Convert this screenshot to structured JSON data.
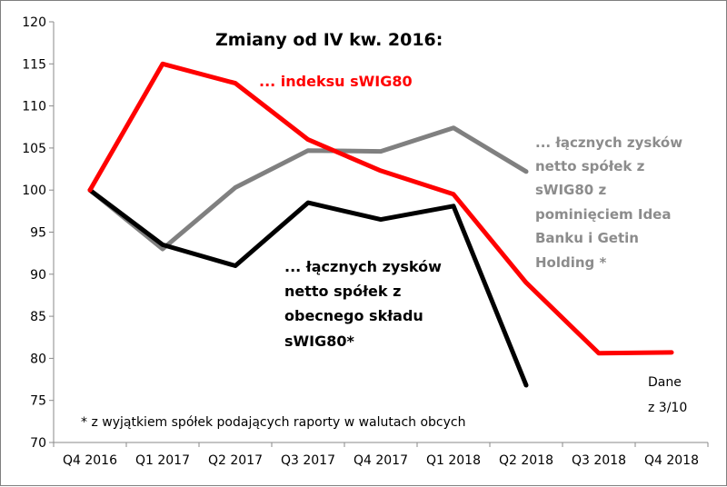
{
  "chart_data": {
    "type": "line",
    "title": "Zmiany od IV kw. 2016:",
    "categories": [
      "Q4 2016",
      "Q1 2017",
      "Q2 2017",
      "Q3 2017",
      "Q4 2017",
      "Q1 2018",
      "Q2 2018",
      "Q3 2018",
      "Q4 2018"
    ],
    "ylim": [
      70,
      120
    ],
    "yticks": [
      70,
      75,
      80,
      85,
      90,
      95,
      100,
      105,
      110,
      115,
      120
    ],
    "grid": false,
    "series": [
      {
        "name": "... indeksu sWIG80",
        "color": "#ff0000",
        "values": [
          100,
          115,
          112.7,
          106,
          102.3,
          99.5,
          89,
          80.6,
          80.7
        ]
      },
      {
        "name": "... łącznych zysków netto spółek z sWIG80 z pominięciem Idea Banku i Getin Holding *",
        "color": "#808080",
        "values": [
          100,
          93,
          100.3,
          104.7,
          104.6,
          107.4,
          102.2,
          null,
          null
        ]
      },
      {
        "name": "... łącznych zysków netto spółek z obecnego składu sWIG80*",
        "color": "#000000",
        "values": [
          100,
          93.5,
          91,
          98.5,
          96.5,
          98.1,
          76.8,
          null,
          null
        ]
      }
    ],
    "annotations": {
      "red_label": "... indeksu sWIG80",
      "gray_label_lines": [
        "... łącznych zysków",
        "netto spółek z",
        "sWIG80 z",
        "pominięciem Idea",
        "Banku i Getin",
        "Holding *"
      ],
      "black_label_lines": [
        "... łącznych zysków",
        "netto spółek z",
        "obecnego składu",
        "sWIG80*"
      ],
      "data_note_lines": [
        "Dane",
        "z 3/10"
      ],
      "footnote": "* z wyjątkiem spółek podających raporty w walutach obcych"
    }
  }
}
